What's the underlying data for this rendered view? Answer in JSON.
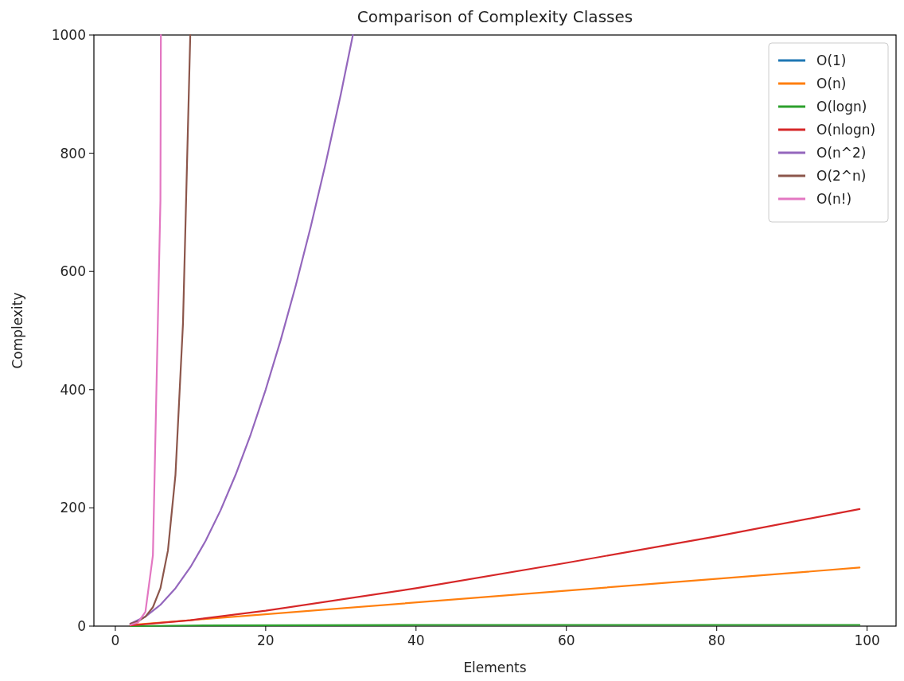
{
  "chart_data": {
    "type": "line",
    "title": "Comparison of Complexity Classes",
    "xlabel": "Elements",
    "ylabel": "Complexity",
    "xlim": [
      -2.85,
      103.85
    ],
    "ylim": [
      0,
      1000
    ],
    "xticks": [
      0,
      20,
      40,
      60,
      80,
      100
    ],
    "yticks": [
      0,
      200,
      400,
      600,
      800,
      1000
    ],
    "grid": false,
    "legend": "top right",
    "line_style": "solid",
    "marker": "none",
    "series": [
      {
        "name": "O(1)",
        "color": "#1f77b4",
        "values": [
          null,
          null
        ]
      },
      {
        "name": "O(n)",
        "color": "#ff7f0e",
        "x": [
          2,
          99
        ],
        "values": [
          2,
          99
        ]
      },
      {
        "name": "O(logn)",
        "color": "#2ca02c",
        "x": [
          2,
          10,
          40,
          99
        ],
        "values": [
          0,
          1,
          2,
          2
        ]
      },
      {
        "name": "O(nlogn)",
        "color": "#d62728",
        "x": [
          2,
          10,
          20,
          40,
          60,
          80,
          99
        ],
        "values": [
          1,
          10,
          26,
          64,
          107,
          152,
          198
        ]
      },
      {
        "name": "O(n^2)",
        "color": "#9467bd",
        "x": [
          2,
          4,
          6,
          8,
          10,
          12,
          14,
          16,
          18,
          20,
          22,
          24,
          26,
          28,
          30,
          31.6
        ],
        "values": [
          4,
          16,
          36,
          64,
          100,
          144,
          196,
          256,
          324,
          400,
          484,
          576,
          676,
          784,
          900,
          1000
        ]
      },
      {
        "name": "O(2^n)",
        "color": "#8c564b",
        "x": [
          2,
          3,
          4,
          5,
          6,
          7,
          8,
          9,
          9.97
        ],
        "values": [
          4,
          8,
          16,
          32,
          64,
          128,
          256,
          512,
          1000
        ]
      },
      {
        "name": "O(n!)",
        "color": "#e377c2",
        "x": [
          2,
          3,
          4,
          5,
          6,
          6.06
        ],
        "values": [
          2,
          6,
          24,
          120,
          720,
          1000
        ]
      }
    ]
  }
}
